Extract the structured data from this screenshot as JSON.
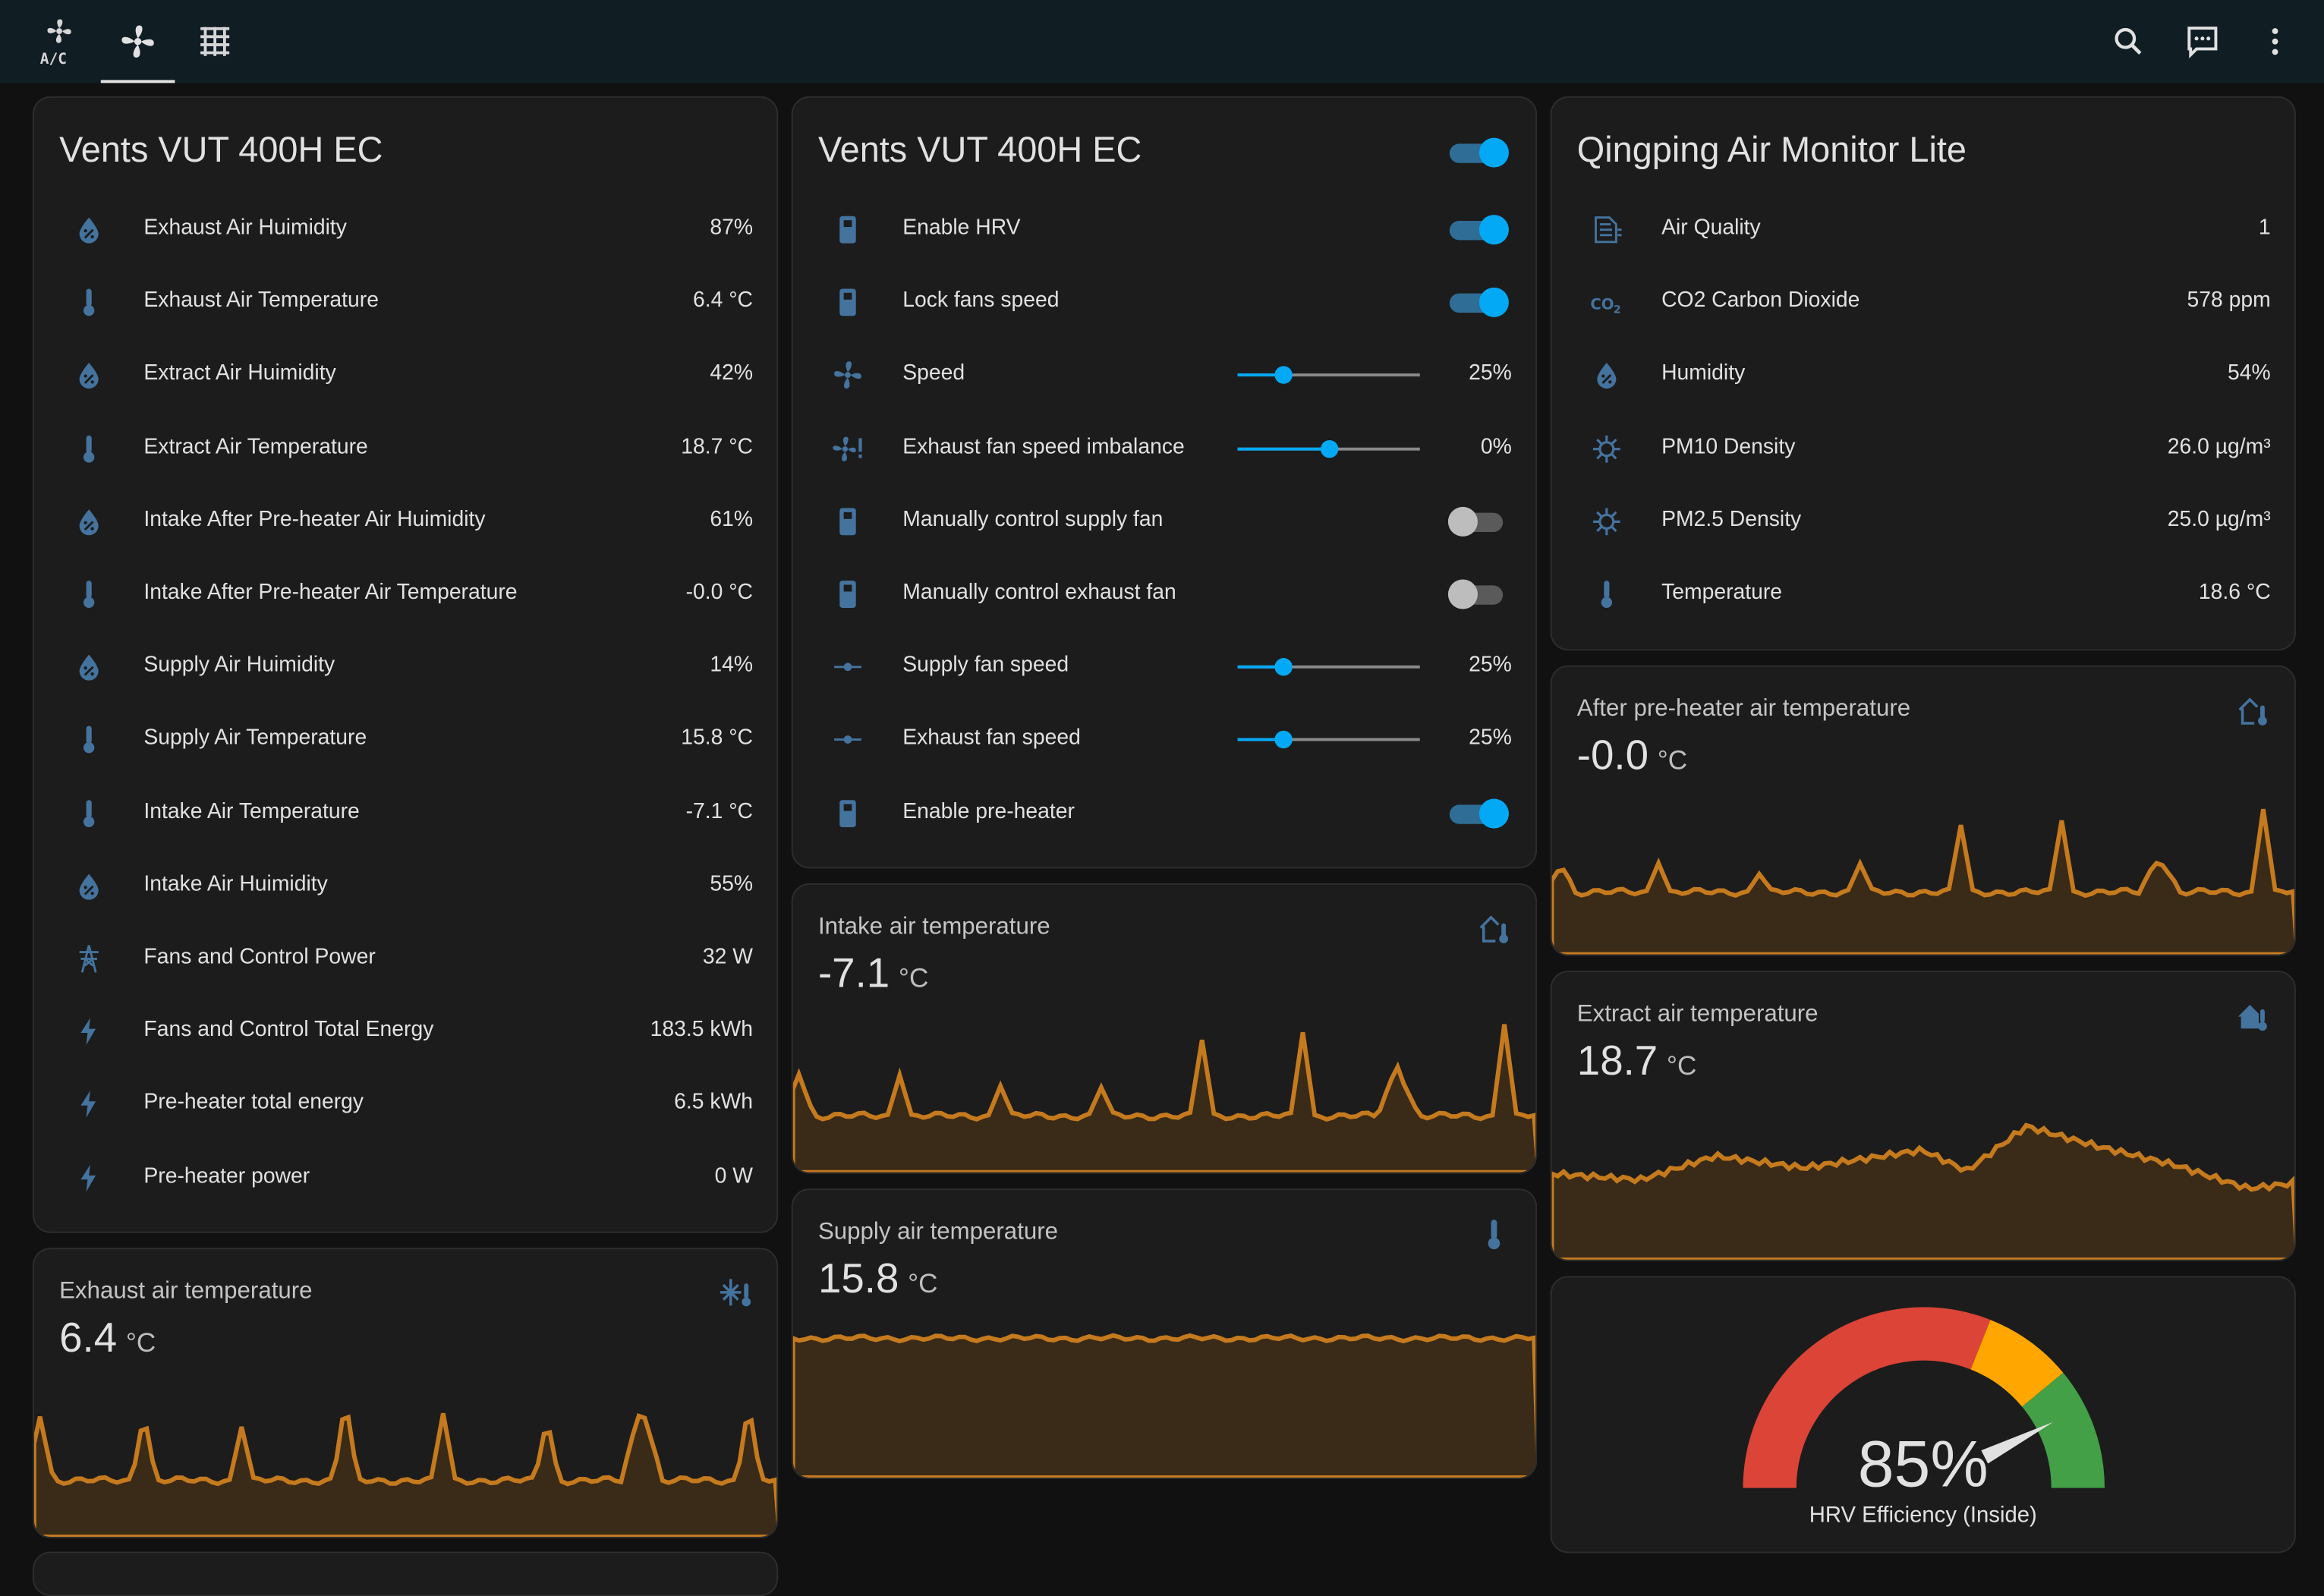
{
  "colors": {
    "icon": "#44739e",
    "accent": "#03a9f4",
    "graph": "#c57a1e",
    "graph_fill": "#3a2a18",
    "gauge_red": "#db4437",
    "gauge_orange": "#ffa600",
    "gauge_green": "#43a047"
  },
  "header": {
    "tabs": [
      {
        "name": "ac-tab",
        "icon": "air-conditioner-icon",
        "label": "A/C"
      },
      {
        "name": "fan-tab",
        "icon": "fan-icon",
        "active": true
      },
      {
        "name": "hvac-tab",
        "icon": "radiator-icon"
      }
    ],
    "actions": [
      "search-icon",
      "assist-chat-icon",
      "more-vertical-icon"
    ]
  },
  "card_vents_sensors": {
    "title": "Vents VUT 400H EC",
    "rows": [
      {
        "icon": "water-percent-icon",
        "label": "Exhaust Air Huimidity",
        "value": "87%"
      },
      {
        "icon": "thermometer-icon",
        "label": "Exhaust Air Temperature",
        "value": "6.4 °C"
      },
      {
        "icon": "water-percent-icon",
        "label": "Extract Air Huimidity",
        "value": "42%"
      },
      {
        "icon": "thermometer-icon",
        "label": "Extract Air Temperature",
        "value": "18.7 °C"
      },
      {
        "icon": "water-percent-icon",
        "label": "Intake After Pre-heater Air Huimidity",
        "value": "61%"
      },
      {
        "icon": "thermometer-icon",
        "label": "Intake After Pre-heater Air Temperature",
        "value": "-0.0 °C"
      },
      {
        "icon": "water-percent-icon",
        "label": "Supply Air Huimidity",
        "value": "14%"
      },
      {
        "icon": "thermometer-icon",
        "label": "Supply Air Temperature",
        "value": "15.8 °C"
      },
      {
        "icon": "thermometer-icon",
        "label": "Intake Air Temperature",
        "value": "-7.1 °C"
      },
      {
        "icon": "water-percent-icon",
        "label": "Intake Air Huimidity",
        "value": "55%"
      },
      {
        "icon": "transmission-tower-icon",
        "label": "Fans and Control Power",
        "value": "32 W"
      },
      {
        "icon": "lightning-bolt-icon",
        "label": "Fans and Control Total Energy",
        "value": "183.5 kWh"
      },
      {
        "icon": "lightning-bolt-icon",
        "label": "Pre-heater total energy",
        "value": "6.5 kWh"
      },
      {
        "icon": "lightning-bolt-icon",
        "label": "Pre-heater power",
        "value": "0 W"
      }
    ]
  },
  "card_vents_controls": {
    "title": "Vents VUT 400H EC",
    "header_toggle_on": true,
    "rows": [
      {
        "icon": "switch-icon",
        "label": "Enable HRV",
        "type": "toggle",
        "on": true
      },
      {
        "icon": "switch-icon",
        "label": "Lock fans speed",
        "type": "toggle",
        "on": true
      },
      {
        "icon": "fan-icon",
        "label": "Speed",
        "type": "slider",
        "level": 25,
        "value": "25%"
      },
      {
        "icon": "fan-alert-icon",
        "label": "Exhaust fan speed imbalance",
        "type": "slider",
        "level": 50,
        "value": "0%"
      },
      {
        "icon": "switch-icon",
        "label": "Manually control supply fan",
        "type": "toggle",
        "on": false
      },
      {
        "icon": "switch-icon",
        "label": "Manually control exhaust fan",
        "type": "toggle",
        "on": false
      },
      {
        "icon": "ray-vertex-icon",
        "label": "Supply fan speed",
        "type": "slider",
        "level": 25,
        "value": "25%"
      },
      {
        "icon": "ray-vertex-icon",
        "label": "Exhaust fan speed",
        "type": "slider",
        "level": 25,
        "value": "25%"
      },
      {
        "icon": "switch-icon",
        "label": "Enable pre-heater",
        "type": "toggle",
        "on": true
      }
    ]
  },
  "card_qingping": {
    "title": "Qingping Air Monitor Lite",
    "rows": [
      {
        "icon": "air-filter-icon",
        "label": "Air Quality",
        "value": "1"
      },
      {
        "icon": "molecule-co2-icon",
        "label": "CO2 Carbon Dioxide",
        "value": "578 ppm"
      },
      {
        "icon": "water-percent-icon",
        "label": "Humidity",
        "value": "54%"
      },
      {
        "icon": "virus-icon",
        "label": "PM10 Density",
        "value": "26.0 µg/m³"
      },
      {
        "icon": "virus-icon",
        "label": "PM2.5 Density",
        "value": "25.0 µg/m³"
      },
      {
        "icon": "thermometer-icon",
        "label": "Temperature",
        "value": "18.6 °C"
      }
    ]
  },
  "sensor_cards": [
    {
      "id": "preheater",
      "name": "After pre-heater air temperature",
      "value": "-0.0",
      "unit": "°C",
      "icon": "home-thermometer-outline-icon"
    },
    {
      "id": "intake",
      "name": "Intake air temperature",
      "value": "-7.1",
      "unit": "°C",
      "icon": "home-thermometer-outline-icon"
    },
    {
      "id": "extract",
      "name": "Extract air temperature",
      "value": "18.7",
      "unit": "°C",
      "icon": "home-thermometer-icon"
    },
    {
      "id": "supply",
      "name": "Supply air temperature",
      "value": "15.8",
      "unit": "°C",
      "icon": "thermometer-icon"
    },
    {
      "id": "exhaust",
      "name": "Exhaust air temperature",
      "value": "6.4",
      "unit": "°C",
      "icon": "snowflake-thermometer-icon"
    }
  ],
  "gauge": {
    "value": "85%",
    "percent": 85,
    "label": "HRV Efficiency (Inside)"
  }
}
